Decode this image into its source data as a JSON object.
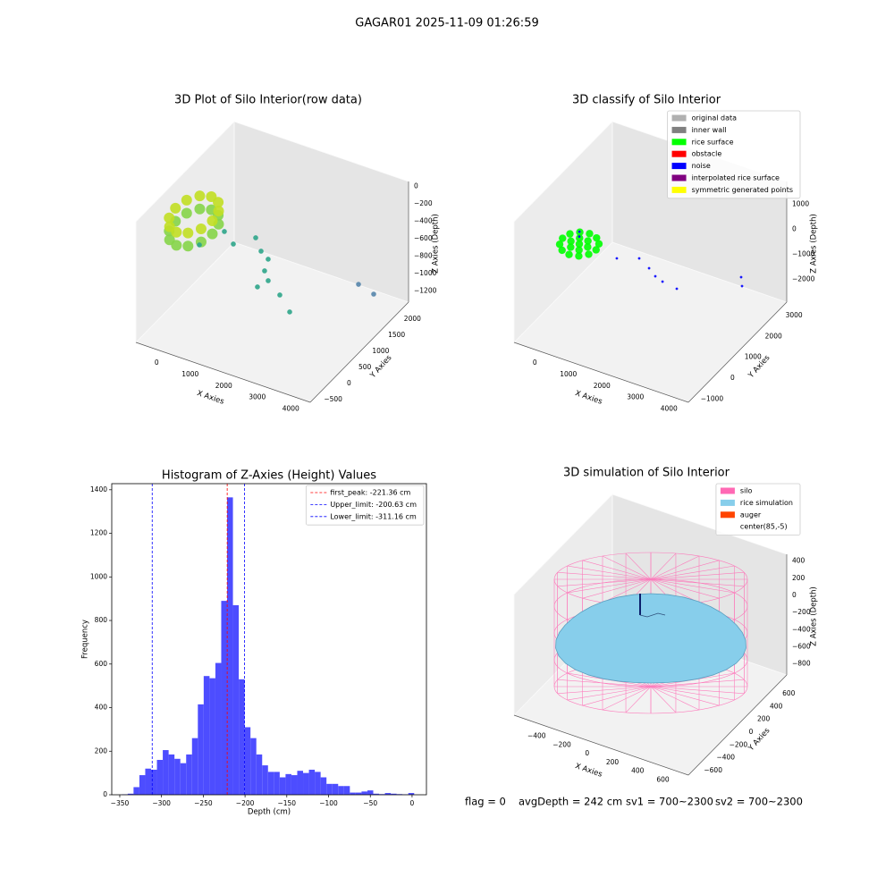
{
  "title": "GAGAR01 2025-11-09 01:26:59",
  "footer": [
    "flag = 0",
    "avgDepth = 242 cm",
    "sv1 = 700~2300",
    "sv2 = 700~2300"
  ],
  "chart_data": [
    {
      "type": "scatter3d",
      "title": "3D Plot of Silo Interior(row data)",
      "xlabel": "X Axies",
      "ylabel": "Y Axies",
      "zlabel": "Z Axies (Depth)",
      "xlim": [
        -700,
        4500
      ],
      "ylim": [
        -800,
        2300
      ],
      "zlim": [
        -1330,
        55
      ],
      "grid": true,
      "xticks": [
        0,
        1000,
        2000,
        3000,
        4000
      ],
      "yticks": [
        {
          "value": -500,
          "label": "−500"
        },
        0,
        500,
        1000,
        1500,
        2000
      ],
      "zticks": [
        0,
        {
          "value": -200,
          "label": "−200"
        },
        {
          "value": -400,
          "label": "−400"
        },
        {
          "value": -600,
          "label": "−600"
        },
        {
          "value": -800,
          "label": "−800"
        },
        {
          "value": -1000,
          "label": "−1000"
        },
        {
          "value": -1200,
          "label": "−1200"
        }
      ],
      "series": [
        {
          "color": "#86d549",
          "x": [
            594,
            520,
            319,
            44,
            -231,
            -432,
            -506,
            -432,
            -231,
            44,
            319,
            520
          ],
          "y": [
            242,
            517,
            718,
            792,
            718,
            517,
            242,
            -33,
            -234,
            -308,
            -234,
            -33
          ],
          "z": [
            -300,
            -300,
            -300,
            -300,
            -300,
            -300,
            -300,
            -300,
            -300,
            -300,
            -300,
            -300
          ]
        },
        {
          "color": "#c2df23",
          "x": [
            594,
            520,
            319,
            44,
            -231,
            -432,
            -506,
            -432,
            -231,
            44,
            319,
            520
          ],
          "y": [
            242,
            517,
            718,
            792,
            718,
            517,
            242,
            -33,
            -234,
            -308,
            -234,
            -33
          ],
          "z": [
            -150,
            -150,
            -150,
            -150,
            -150,
            -150,
            -150,
            -150,
            -150,
            -150,
            -150,
            -150
          ]
        },
        {
          "color": "#2ea58a",
          "x": [
            356,
            620,
            1094,
            1455,
            1869,
            2203,
            2378,
            2674,
            2571,
            3247,
            3838
          ],
          "y": [
            86,
            595,
            376,
            699,
            431,
            302,
            4,
            -195,
            -425,
            -434,
            -748
          ],
          "z": [
            -400,
            -400,
            -400,
            -400,
            -400,
            -400,
            -400,
            -400,
            -400,
            -400,
            -400
          ]
        },
        {
          "color": "#5585ab",
          "x": [
            3623,
            3985
          ],
          "y": [
            1649,
            1745
          ],
          "z": [
            -1000,
            -1100
          ]
        }
      ]
    },
    {
      "type": "scatter3d",
      "title": "3D classify of Silo Interior",
      "xlabel": "X Axies",
      "ylabel": "Y Axies",
      "zlabel": "Z Axies (Depth)",
      "xlim": [
        -700,
        4500
      ],
      "ylim": [
        -1500,
        3300
      ],
      "zlim": [
        -2900,
        1900
      ],
      "grid": true,
      "legend": "upper right",
      "xticks": [
        0,
        1000,
        2000,
        3000,
        4000
      ],
      "yticks": [
        {
          "value": -1000,
          "label": "−1000"
        },
        0,
        1000,
        2000,
        3000
      ],
      "zticks": [
        {
          "value": -2000,
          "label": "−2000"
        },
        {
          "value": -1000,
          "label": "−1000"
        },
        0,
        1000
      ],
      "series": [
        {
          "name": "original data",
          "color": "#b0b0b0",
          "x": [],
          "y": [],
          "z": []
        },
        {
          "name": "inner wall",
          "color": "#808080",
          "x": [],
          "y": [],
          "z": []
        },
        {
          "name": "rice surface",
          "color": "#00ff00",
          "x": [
            699,
            632,
            449,
            199,
            -51,
            -234,
            -301,
            -234,
            -51,
            199,
            449,
            632,
            449,
            324,
            74,
            -51,
            74,
            324,
            199
          ],
          "y": [
            214,
            464,
            647,
            714,
            647,
            464,
            214,
            -36,
            -219,
            -286,
            -219,
            -36,
            214,
            431,
            431,
            214,
            -3,
            -3,
            214
          ],
          "z": [
            0,
            0,
            0,
            0,
            0,
            0,
            0,
            0,
            0,
            0,
            0,
            0,
            0,
            0,
            0,
            0,
            0,
            0,
            0
          ]
        },
        {
          "name": "obstacle",
          "color": "#ff0000",
          "x": [],
          "y": [],
          "z": []
        },
        {
          "name": "noise",
          "color": "#0000ff",
          "x": [
            1073,
            1572,
            2008,
            2323,
            2602,
            3076,
            3706,
            3646,
            199,
            150
          ],
          "y": [
            615,
            891,
            660,
            448,
            344,
            264,
            2374,
            2516,
            214,
            300
          ],
          "z": [
            -500,
            -500,
            -500,
            -500,
            -500,
            -500,
            -1500,
            -2000,
            300,
            400
          ]
        },
        {
          "name": "interpolated rice surface",
          "color": "#800080",
          "x": [],
          "y": [],
          "z": []
        },
        {
          "name": "symmetric generated points",
          "color": "#ffff00",
          "x": [],
          "y": [],
          "z": []
        }
      ]
    },
    {
      "type": "histogram",
      "title": "Histogram of Z-Axies (Height) Values",
      "xlabel": "Depth (cm)",
      "ylabel": "Frequency",
      "color": "#4d4dff",
      "legend": "upper right",
      "xlim": [
        -359.6,
        17.2
      ],
      "ylim": [
        0,
        1428
      ],
      "xticks": [
        {
          "value": -350,
          "label": "−350"
        },
        {
          "value": -300,
          "label": "−300"
        },
        {
          "value": -250,
          "label": "−250"
        },
        {
          "value": -200,
          "label": "−200"
        },
        {
          "value": -150,
          "label": "−150"
        },
        {
          "value": -100,
          "label": "−100"
        },
        {
          "value": -50,
          "label": "−50"
        },
        0
      ],
      "yticks": [
        0,
        200,
        400,
        600,
        800,
        1000,
        1200,
        1400
      ],
      "bins": [
        -347.5,
        -340.5,
        -333.5,
        -326.5,
        -319.5,
        -312.5,
        -305.5,
        -298.5,
        -291.5,
        -284.5,
        -277.5,
        -270.5,
        -263.5,
        -256.5,
        -249.5,
        -242.5,
        -235.5,
        -228.5,
        -221.5,
        -214.5,
        -207.5,
        -200.5,
        -193.5,
        -186.5,
        -179.5,
        -172.5,
        -165.5,
        -158.5,
        -151.5,
        -144.5,
        -137.5,
        -130.5,
        -123.5,
        -116.5,
        -109.5,
        -102.5,
        -95.5,
        -88.5,
        -81.5,
        -74.5,
        -67.5,
        -60.5,
        -53.5,
        -46.5,
        -39.5,
        -32.5,
        -25.5,
        -18.5,
        -11.5,
        -4.5,
        2.5
      ],
      "values": [
        2,
        5,
        35,
        90,
        120,
        115,
        160,
        205,
        185,
        165,
        145,
        185,
        260,
        415,
        545,
        535,
        605,
        890,
        1365,
        870,
        530,
        310,
        260,
        185,
        135,
        105,
        105,
        80,
        95,
        90,
        110,
        100,
        115,
        105,
        80,
        50,
        50,
        40,
        40,
        10,
        10,
        15,
        20,
        5,
        3,
        8,
        5,
        3,
        2,
        8
      ],
      "lines": [
        {
          "value": -221.36,
          "label": "first_peak: -221.36 cm",
          "color": "#ff0000"
        },
        {
          "value": -200.63,
          "label": "Upper_limit: -200.63 cm",
          "color": "#0000ff"
        },
        {
          "value": -311.16,
          "label": "Lower_limit: -311.16 cm",
          "color": "#0000ff"
        }
      ]
    },
    {
      "type": "simulation3d",
      "title": "3D simulation of Silo Interior",
      "xlabel": "X Axies",
      "ylabel": "Y Axies",
      "zlabel": "Z Axies (Depth)",
      "xlim": [
        -600,
        780
      ],
      "ylim": [
        -780,
        780
      ],
      "zlim": [
        -930,
        480
      ],
      "grid": true,
      "legend": "upper right",
      "xticks": [
        {
          "value": -400,
          "label": "−400"
        },
        {
          "value": -200,
          "label": "−200"
        },
        0,
        200,
        400,
        600
      ],
      "yticks": [
        {
          "value": -600,
          "label": "−600"
        },
        {
          "value": -400,
          "label": "−400"
        },
        {
          "value": -200,
          "label": "−200"
        },
        0,
        200,
        400,
        600
      ],
      "zticks": [
        {
          "value": -800,
          "label": "−800"
        },
        {
          "value": -600,
          "label": "−600"
        },
        {
          "value": -400,
          "label": "−400"
        },
        {
          "value": -200,
          "label": "−200"
        },
        0,
        200,
        400
      ],
      "series": [
        {
          "name": "silo",
          "color": "#ff69b4"
        },
        {
          "name": "rice simulation",
          "color": "#87ceeb"
        },
        {
          "name": "auger",
          "color": "#ff4500"
        },
        {
          "name": "center(85,-5)",
          "color": "#ffffff"
        }
      ]
    }
  ]
}
